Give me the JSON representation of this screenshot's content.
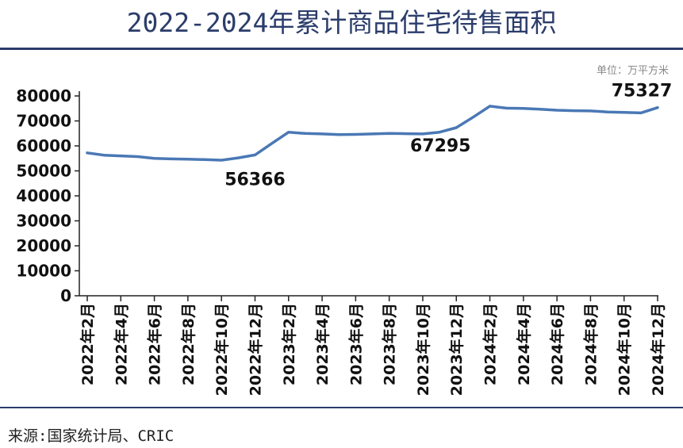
{
  "title": "2022-2024年累计商品住宅待售面积",
  "unit_label": "单位：万平方米",
  "source": "来源:国家统计局、CRIC",
  "colors": {
    "line": "#4a78b5",
    "title": "#2b3d6b",
    "axis": "#222222"
  },
  "chart_data": {
    "type": "line",
    "title": "2022-2024年累计商品住宅待售面积",
    "ylabel": "",
    "xlabel": "",
    "ylim": [
      0,
      80000
    ],
    "yticks": [
      0,
      10000,
      20000,
      30000,
      40000,
      50000,
      60000,
      70000,
      80000
    ],
    "grid": false,
    "x": [
      "2022年2月",
      "2022年3月",
      "2022年4月",
      "2022年5月",
      "2022年6月",
      "2022年7月",
      "2022年8月",
      "2022年9月",
      "2022年10月",
      "2022年11月",
      "2022年12月",
      "2023年1月",
      "2023年2月",
      "2023年3月",
      "2023年4月",
      "2023年5月",
      "2023年6月",
      "2023年7月",
      "2023年8月",
      "2023年9月",
      "2023年10月",
      "2023年11月",
      "2023年12月",
      "2024年1月",
      "2024年2月",
      "2024年3月",
      "2024年4月",
      "2024年5月",
      "2024年6月",
      "2024年7月",
      "2024年8月",
      "2024年9月",
      "2024年10月",
      "2024年11月",
      "2024年12月"
    ],
    "x_tick_labels": [
      "2022年2月",
      "2022年4月",
      "2022年6月",
      "2022年8月",
      "2022年10月",
      "2022年12月",
      "2023年2月",
      "2023年4月",
      "2023年6月",
      "2023年8月",
      "2023年10月",
      "2023年12月",
      "2024年2月",
      "2024年4月",
      "2024年6月",
      "2024年8月",
      "2024年10月",
      "2024年12月"
    ],
    "series": [
      {
        "values": [
          57200,
          56300,
          56000,
          55700,
          55000,
          54800,
          54700,
          54500,
          54300,
          55200,
          56366,
          61000,
          65500,
          65000,
          64800,
          64500,
          64600,
          64800,
          65000,
          64900,
          64800,
          65500,
          67295,
          71500,
          75900,
          75100,
          75000,
          74700,
          74300,
          74100,
          74000,
          73600,
          73400,
          73200,
          75327
        ]
      }
    ],
    "annotations": [
      {
        "label": "56366",
        "x": "2022年12月",
        "value": 56366
      },
      {
        "label": "67295",
        "x": "2023年12月",
        "value": 67295
      },
      {
        "label": "75327",
        "x": "2024年12月",
        "value": 75327
      }
    ]
  }
}
